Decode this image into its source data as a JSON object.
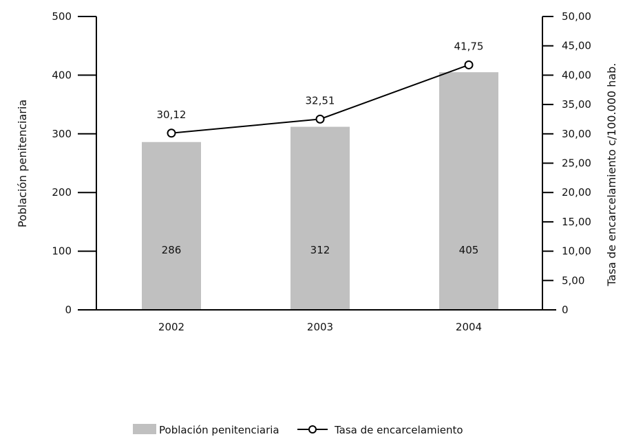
{
  "chart_data": {
    "type": "bar+line",
    "categories": [
      "2002",
      "2003",
      "2004"
    ],
    "series": [
      {
        "name": "Población penitenciaria",
        "kind": "bar",
        "axis": "left",
        "values": [
          286,
          312,
          405
        ],
        "labels": [
          "286",
          "312",
          "405"
        ],
        "color": "#c0c0c0"
      },
      {
        "name": "Tasa de encarcelamiento",
        "kind": "line",
        "axis": "right",
        "values": [
          30.12,
          32.51,
          41.75
        ],
        "labels": [
          "30,12",
          "32,51",
          "41,75"
        ],
        "color": "#000000",
        "marker": "open-circle"
      }
    ],
    "left_axis": {
      "label": "Población penitenciaria",
      "range": [
        0,
        500
      ],
      "ticks": [
        "0",
        "100",
        "200",
        "300",
        "400",
        "500"
      ]
    },
    "right_axis": {
      "label": "Tasa de encarcelamiento c/100.000 hab.",
      "range": [
        0,
        50
      ],
      "ticks": [
        "0",
        "5,00",
        "10,00",
        "15,00",
        "20,00",
        "25,00",
        "30,00",
        "35,00",
        "40,00",
        "45,00",
        "50,00"
      ]
    },
    "grid": false,
    "legend_position": "bottom"
  }
}
